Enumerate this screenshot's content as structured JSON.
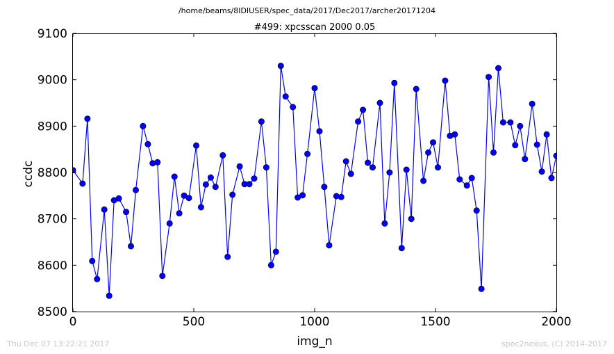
{
  "chart_data": {
    "type": "line",
    "suptitle": "/home/beams/8IDIUSER/spec_data/2017/Dec2017/archer20171204",
    "title": "#499: xpcsscan 2000 0.05",
    "xlabel": "img_n",
    "ylabel": "ccdc",
    "xlim": [
      0,
      2000
    ],
    "ylim": [
      8500,
      9100
    ],
    "xticks": [
      "0",
      "500",
      "1000",
      "1500",
      "2000"
    ],
    "yticks": [
      "8500",
      "8600",
      "8700",
      "8800",
      "8900",
      "9000",
      "9100"
    ],
    "grid": false,
    "color": "#0000ff",
    "series": [
      {
        "x": [
          0,
          40,
          60,
          80,
          100,
          130,
          150,
          170,
          190,
          220,
          240,
          260,
          290,
          310,
          330,
          350,
          370,
          400,
          420,
          440,
          460,
          480,
          510,
          530,
          550,
          570,
          590,
          620,
          640,
          660,
          690,
          710,
          730,
          750,
          780,
          800,
          820,
          840,
          860,
          880,
          910,
          930,
          950,
          970,
          1000,
          1020,
          1040,
          1060,
          1090,
          1110,
          1130,
          1150,
          1180,
          1200,
          1220,
          1240,
          1270,
          1290,
          1310,
          1330,
          1360,
          1380,
          1400,
          1420,
          1450,
          1470,
          1490,
          1510,
          1540,
          1560,
          1580,
          1600,
          1630,
          1650,
          1670,
          1690,
          1720,
          1740,
          1760,
          1780,
          1810,
          1830,
          1850,
          1870,
          1900,
          1920,
          1940,
          1960,
          1980,
          2000
        ],
        "values": [
          8805,
          8776,
          8916,
          8609,
          8570,
          8720,
          8534,
          8740,
          8744,
          8715,
          8641,
          8762,
          8900,
          8861,
          8820,
          8822,
          8577,
          8690,
          8791,
          8712,
          8750,
          8745,
          8858,
          8725,
          8774,
          8789,
          8769,
          8837,
          8618,
          8752,
          8813,
          8775,
          8775,
          8787,
          8910,
          8811,
          8600,
          8629,
          9030,
          8964,
          8941,
          8746,
          8751,
          8840,
          8982,
          8889,
          8769,
          8643,
          8749,
          8747,
          8824,
          8797,
          8910,
          8935,
          8821,
          8811,
          8950,
          8690,
          8800,
          8993,
          8637,
          8806,
          8700,
          8980,
          8782,
          8843,
          8865,
          8811,
          8998,
          8879,
          8882,
          8785,
          8772,
          8788,
          8718,
          8549,
          9006,
          8843,
          9025,
          8908,
          8908,
          8859,
          8900,
          8829,
          8948,
          8860,
          8802,
          8882,
          8788,
          8836
        ]
      }
    ]
  },
  "footer": {
    "left": "Thu Dec 07 13:22:21 2017",
    "right": "spec2nexus, (C) 2014-2017"
  }
}
